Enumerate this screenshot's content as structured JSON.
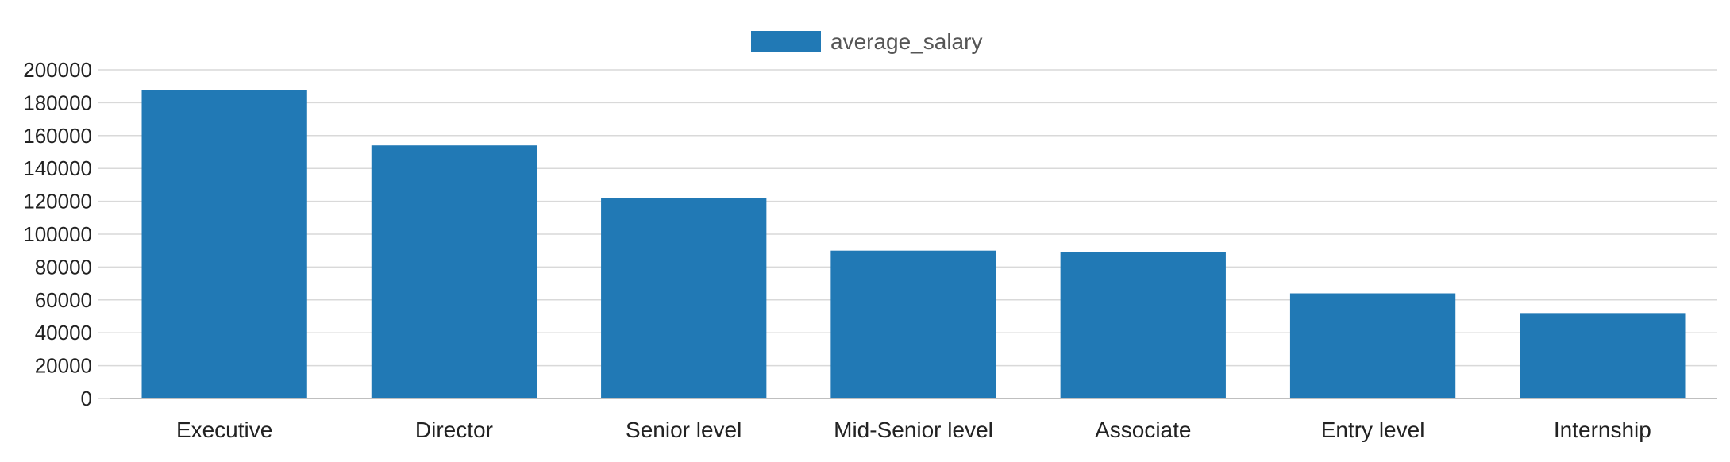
{
  "chart_data": {
    "type": "bar",
    "categories": [
      "Executive",
      "Director",
      "Senior level",
      "Mid-Senior level",
      "Associate",
      "Entry level",
      "Internship"
    ],
    "series": [
      {
        "name": "average_salary",
        "values": [
          187500,
          154000,
          122000,
          90000,
          89000,
          64000,
          52000
        ],
        "color": "#2179b5"
      }
    ],
    "ylim": [
      0,
      200000
    ],
    "yticks": [
      0,
      20000,
      40000,
      60000,
      80000,
      100000,
      120000,
      140000,
      160000,
      180000,
      200000
    ],
    "grid": true,
    "legend_position": "top-center",
    "title": "",
    "xlabel": "",
    "ylabel": ""
  }
}
